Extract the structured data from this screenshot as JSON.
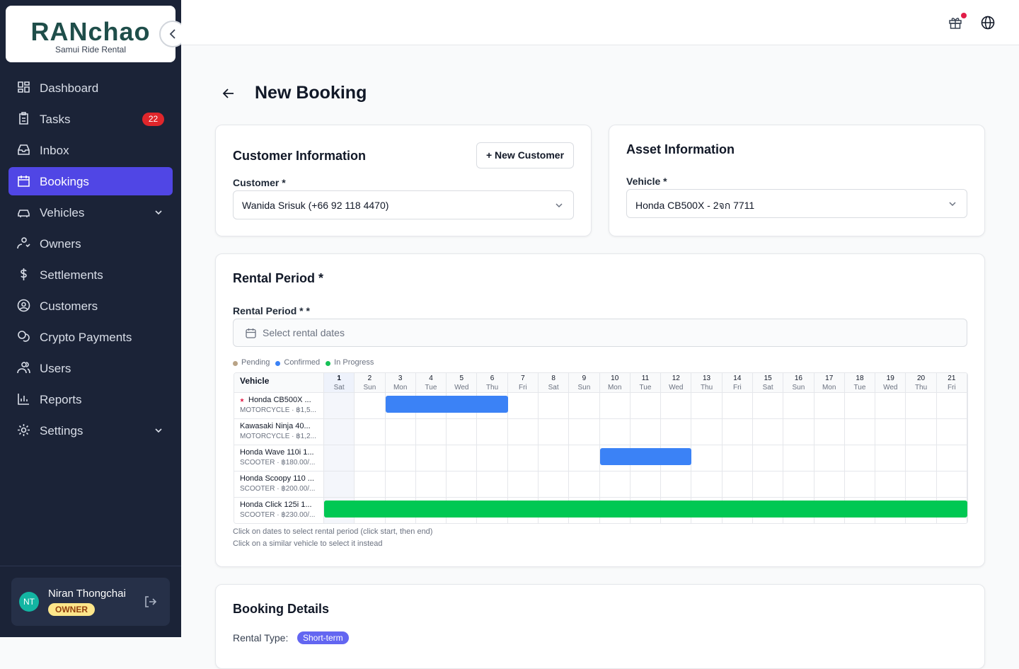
{
  "brand": {
    "name": "RANchao",
    "tagline": "Samui Ride Rental"
  },
  "nav": [
    {
      "label": "Dashboard"
    },
    {
      "label": "Tasks",
      "badge": 22
    },
    {
      "label": "Inbox"
    },
    {
      "label": "Bookings",
      "active": true
    },
    {
      "label": "Vehicles",
      "expandable": true
    },
    {
      "label": "Owners"
    },
    {
      "label": "Settlements"
    },
    {
      "label": "Customers"
    },
    {
      "label": "Crypto Payments"
    },
    {
      "label": "Users"
    },
    {
      "label": "Reports"
    },
    {
      "label": "Settings",
      "expandable": true
    }
  ],
  "user": {
    "initials": "NT",
    "name": "Niran Thongchai",
    "role": "OWNER"
  },
  "page": {
    "title": "New Booking"
  },
  "customer_card": {
    "title": "Customer Information",
    "button": "+ New Customer",
    "label": "Customer *",
    "value": "Wanida Srisuk (+66 92 118 4470)"
  },
  "asset_card": {
    "title": "Asset Information",
    "label": "Vehicle *",
    "value": "Honda CB500X - 2จก 7711"
  },
  "rental": {
    "title": "Rental Period *",
    "field_label": "Rental Period * *",
    "placeholder": "Select rental dates",
    "legend": [
      {
        "label": "Pending",
        "color": "#b9a386"
      },
      {
        "label": "Confirmed",
        "color": "#3b82f6"
      },
      {
        "label": "In Progress",
        "color": "#16c157"
      }
    ],
    "vehicle_header": "Vehicle",
    "days": [
      {
        "date": 1,
        "weekday": "Sat"
      },
      {
        "date": 2,
        "weekday": "Sun"
      },
      {
        "date": 3,
        "weekday": "Mon"
      },
      {
        "date": 4,
        "weekday": "Tue"
      },
      {
        "date": 5,
        "weekday": "Wed"
      },
      {
        "date": 6,
        "weekday": "Thu"
      },
      {
        "date": 7,
        "weekday": "Fri"
      },
      {
        "date": 8,
        "weekday": "Sat"
      },
      {
        "date": 9,
        "weekday": "Sun"
      },
      {
        "date": 10,
        "weekday": "Mon"
      },
      {
        "date": 11,
        "weekday": "Tue"
      },
      {
        "date": 12,
        "weekday": "Wed"
      },
      {
        "date": 13,
        "weekday": "Thu"
      },
      {
        "date": 14,
        "weekday": "Fri"
      },
      {
        "date": 15,
        "weekday": "Sat"
      },
      {
        "date": 16,
        "weekday": "Sun"
      },
      {
        "date": 17,
        "weekday": "Mon"
      },
      {
        "date": 18,
        "weekday": "Tue"
      },
      {
        "date": 19,
        "weekday": "Wed"
      },
      {
        "date": 20,
        "weekday": "Thu"
      },
      {
        "date": 21,
        "weekday": "Fri"
      }
    ],
    "vehicles": [
      {
        "name": "Honda CB500X ...",
        "detail": "MOTORCYCLE · ฿1,5...",
        "selected": true,
        "bookings": [
          {
            "start": 3,
            "end": 6,
            "color": "#3b82f6"
          }
        ]
      },
      {
        "name": "Kawasaki Ninja 40...",
        "detail": "MOTORCYCLE · ฿1,2...",
        "bookings": []
      },
      {
        "name": "Honda Wave 110i 1...",
        "detail": "SCOOTER · ฿180.00/...",
        "bookings": [
          {
            "start": 10,
            "end": 12,
            "color": "#3b82f6"
          }
        ]
      },
      {
        "name": "Honda Scoopy 110 ...",
        "detail": "SCOOTER · ฿200.00/...",
        "bookings": []
      },
      {
        "name": "Honda Click 125i 1...",
        "detail": "SCOOTER · ฿230.00/...",
        "bookings": [
          {
            "start": 1,
            "end": 21,
            "color": "#00c853"
          }
        ]
      }
    ],
    "notes": [
      "Click on dates to select rental period (click start, then end)",
      "Click on a similar vehicle to select it instead"
    ]
  },
  "details": {
    "title": "Booking Details",
    "rental_type_label": "Rental Type:",
    "rental_type": "Short-term"
  }
}
